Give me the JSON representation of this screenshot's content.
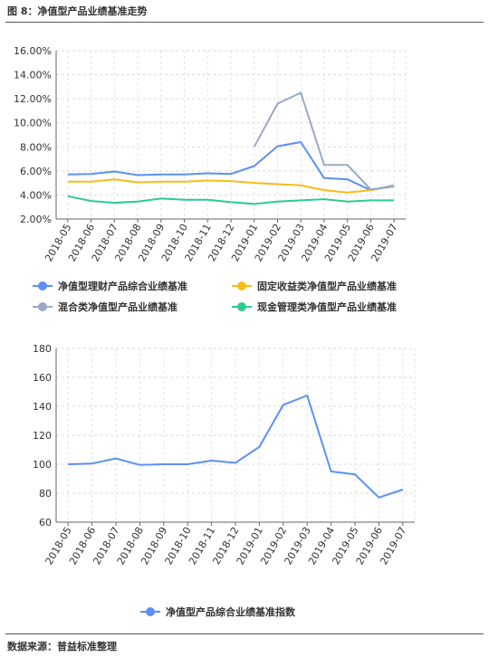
{
  "figure_title": "图 8：净值型产品业绩基准走势",
  "source": "数据来源：普益标准整理",
  "chart_data": [
    {
      "type": "line",
      "categories": [
        "2018-05",
        "2018-06",
        "2018-07",
        "2018-08",
        "2018-09",
        "2018-10",
        "2018-11",
        "2018-12",
        "2019-01",
        "2019-02",
        "2019-03",
        "2019-04",
        "2019-05",
        "2019-06",
        "2019-07"
      ],
      "ylim": [
        2,
        16
      ],
      "yticks": [
        "2.00%",
        "4.00%",
        "6.00%",
        "8.00%",
        "10.00%",
        "12.00%",
        "14.00%",
        "16.00%"
      ],
      "grid": true,
      "legend_position": "bottom",
      "series": [
        {
          "name": "净值型理财产品综合业绩基准",
          "color": "#5b8ff9",
          "values": [
            5.7,
            5.75,
            5.95,
            5.65,
            5.7,
            5.7,
            5.8,
            5.75,
            6.4,
            8.05,
            8.4,
            5.4,
            5.3,
            4.4,
            4.8
          ]
        },
        {
          "name": "固定收益类净值型产品业绩基准",
          "color": "#f6bd16",
          "values": [
            5.1,
            5.1,
            5.3,
            5.05,
            5.1,
            5.1,
            5.2,
            5.15,
            5.0,
            4.9,
            4.8,
            4.4,
            4.2,
            4.4,
            4.75
          ]
        },
        {
          "name": "混合类净值型产品业绩基准",
          "color": "#9aa8c4",
          "values": [
            null,
            null,
            null,
            null,
            null,
            null,
            null,
            null,
            8.0,
            11.6,
            12.5,
            6.5,
            6.5,
            4.45,
            4.7
          ]
        },
        {
          "name": "现金管理类净值型产品业绩基准",
          "color": "#2fca8f",
          "values": [
            3.9,
            3.5,
            3.35,
            3.45,
            3.7,
            3.6,
            3.6,
            3.4,
            3.25,
            3.45,
            3.55,
            3.65,
            3.45,
            3.55,
            3.55
          ]
        }
      ]
    },
    {
      "type": "line",
      "categories": [
        "2018-05",
        "2018-06",
        "2018-07",
        "2018-08",
        "2018-09",
        "2018-10",
        "2018-11",
        "2018-12",
        "2019-01",
        "2019-02",
        "2019-03",
        "2019-04",
        "2019-05",
        "2019-06",
        "2019-07"
      ],
      "ylim": [
        60,
        180
      ],
      "yticks": [
        "60",
        "80",
        "100",
        "120",
        "140",
        "160",
        "180"
      ],
      "grid": true,
      "legend_position": "bottom",
      "series": [
        {
          "name": "净值型产品综合业绩基准指数",
          "color": "#5b8ff9",
          "values": [
            100,
            100.5,
            104,
            99.5,
            100,
            100,
            102.5,
            101,
            112,
            141,
            147.5,
            95,
            93,
            77,
            82.5
          ]
        }
      ]
    }
  ]
}
